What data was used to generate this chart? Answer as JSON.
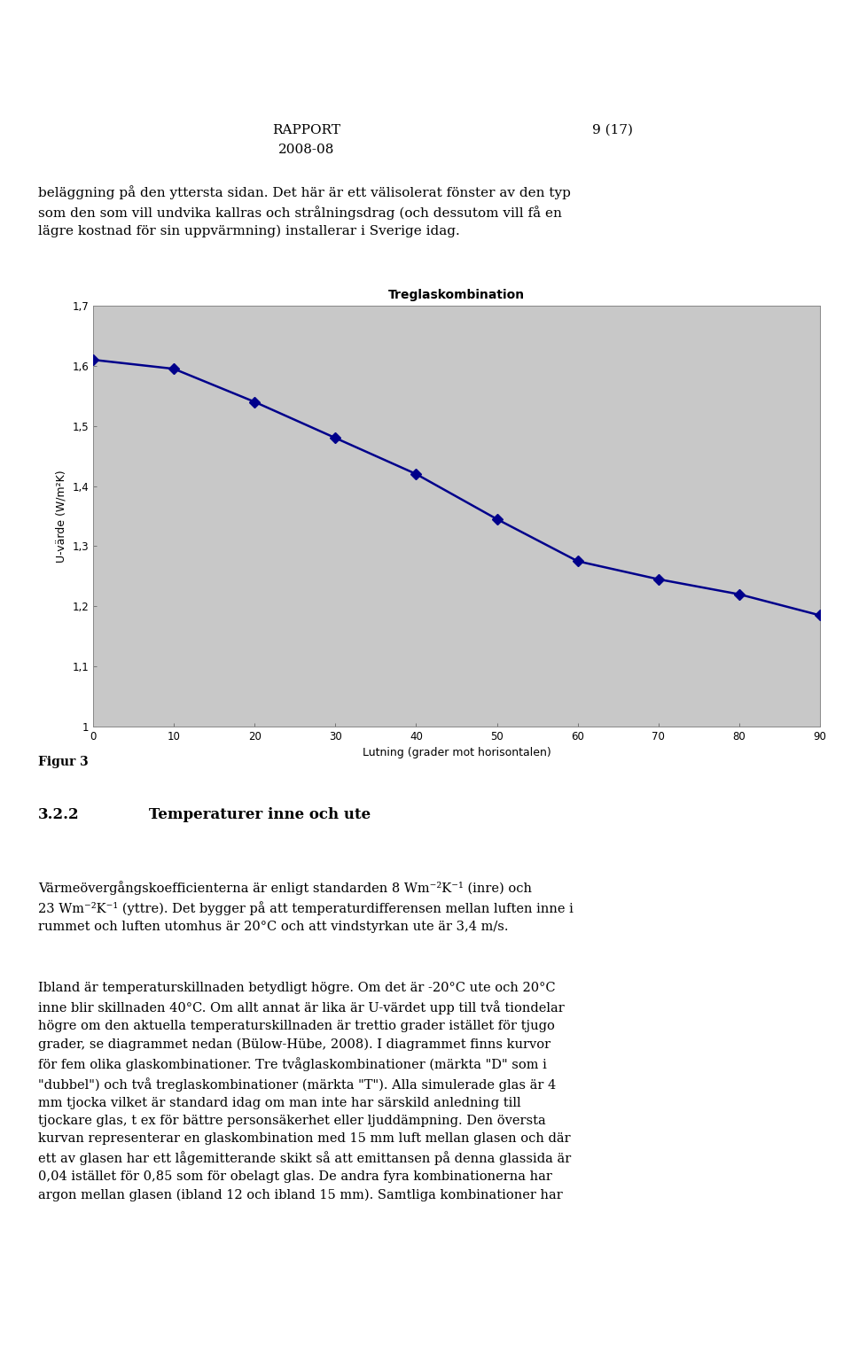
{
  "title": "Treglaskombination",
  "xlabel": "Lutning (grader mot horisontalen)",
  "ylabel": "U-värde (W/m²K)",
  "x_values": [
    0,
    10,
    20,
    30,
    40,
    50,
    60,
    70,
    80,
    90
  ],
  "y_values": [
    1.61,
    1.595,
    1.54,
    1.48,
    1.42,
    1.345,
    1.275,
    1.245,
    1.22,
    1.185
  ],
  "xlim": [
    0,
    90
  ],
  "ylim": [
    1.0,
    1.7
  ],
  "yticks": [
    1.0,
    1.1,
    1.2,
    1.3,
    1.4,
    1.5,
    1.6,
    1.7
  ],
  "ytick_labels": [
    "1",
    "1,1",
    "1,2",
    "1,3",
    "1,4",
    "1,5",
    "1,6",
    "1,7"
  ],
  "xticks": [
    0,
    10,
    20,
    30,
    40,
    50,
    60,
    70,
    80,
    90
  ],
  "xtick_labels": [
    "0",
    "10",
    "20",
    "30",
    "40",
    "50",
    "60",
    "70",
    "80",
    "90"
  ],
  "line_color": "#00008B",
  "marker_style": "D",
  "marker_size": 6,
  "marker_color": "#00008B",
  "plot_bg_color": "#C8C8C8",
  "fig_bg_color": "#FFFFFF",
  "title_fontsize": 10,
  "label_fontsize": 9,
  "tick_fontsize": 8.5,
  "line_width": 1.8,
  "header_rapport": "RAPPORT",
  "header_date": "2008-08",
  "header_page": "9 (17)",
  "text_above_chart": "beläggning på den yttersta sidan. Det här är ett välisolerat fönster av den typ\nsom den som vill undvika kallras och strålningsdrag (och dessutom vill få en\nlägre kostnad för sin uppvärmning) installerar i Sverige idag.",
  "figur_label": "Figur 3",
  "section_num": "3.2.2",
  "section_title": "Temperaturer inne och ute",
  "body_text_1": "Värmeövergångskoefficienterna är enligt standarden 8 Wm⁻²K⁻¹ (inre) och\n23 Wm⁻²K⁻¹ (yttre). Det bygger på att temperaturdifferensen mellan luften inne i\nrummet och luften utomhus är 20°C och att vindstyrkan ute är 3,4 m/s.",
  "body_text_2": "Ibland är temperaturskillnaden betydligt högre. Om det är -20°C ute och 20°C\ninne blir skillnaden 40°C. Om allt annat är lika är U-värdet upp till två tiondelar\nhögre om den aktuella temperaturskillnaden är trettio grader istället för tjugo\ngrader, se diagrammet nedan (Bülow-Hübe, 2008). I diagrammet finns kurvor\nför fem olika glaskombinationer. Tre tvåglaskombinationer (märkta \"D\" som i\n\"dubbel\") och två treglaskombinationer (märkta \"T\"). Alla simulerade glas är 4\nmm tjocka vilket är standard idag om man inte har särskild anledning till\ntjockare glas, t ex för bättre personsäkerhet eller ljuddämpning. Den översta\nkurvan representerar en glaskombination med 15 mm luft mellan glasen och där\nett av glasen har ett lågemitterande skikt så att emittansen på denna glassida är\n0,04 istället för 0,85 som för obelagt glas. De andra fyra kombinationerna har\nargon mellan glasen (ibland 12 och ibland 15 mm). Samtliga kombinationer har"
}
